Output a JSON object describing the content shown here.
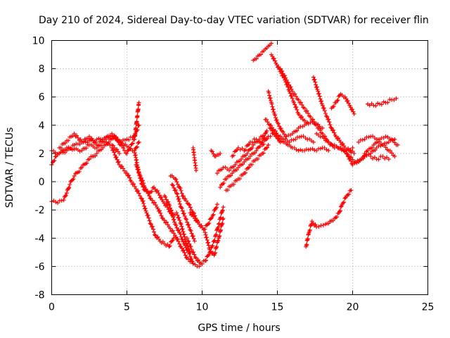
{
  "chart_data": {
    "type": "scatter",
    "title": "Day 210 of 2024, Sidereal Day-to-day VTEC variation (SDTVAR) for receiver flin",
    "xlabel": "GPS time / hours",
    "ylabel": "SDTVAR / TECUs",
    "xlim": [
      0,
      25
    ],
    "ylim": [
      -8,
      10
    ],
    "xticks": [
      "0",
      "5",
      "10",
      "15",
      "20",
      "25"
    ],
    "yticks": [
      "-8",
      "-6",
      "-4",
      "-2",
      "0",
      "2",
      "4",
      "6",
      "8",
      "10"
    ],
    "grid": true,
    "marker": "plus",
    "color": "#ff0000",
    "series": [
      {
        "x": [
          0.0,
          0.5,
          1.0,
          1.5,
          2.0,
          2.5,
          3.0,
          3.5,
          4.0,
          4.5,
          5.0,
          5.5,
          5.8
        ],
        "y": [
          2.2,
          2.0,
          2.2,
          2.6,
          2.8,
          2.9,
          3.0,
          3.1,
          3.2,
          2.9,
          2.5,
          2.2,
          2.8
        ]
      },
      {
        "x": [
          0.0,
          0.3,
          0.6,
          1.0,
          1.5,
          2.0,
          2.5,
          3.0,
          3.5,
          4.0,
          4.5
        ],
        "y": [
          1.2,
          1.8,
          2.1,
          2.4,
          2.3,
          2.2,
          2.6,
          2.4,
          2.8,
          2.6,
          2.0
        ]
      },
      {
        "x": [
          0.0,
          0.4,
          0.8,
          1.0,
          1.2,
          1.5,
          2.0,
          2.5,
          3.0,
          3.4,
          3.8,
          4.2,
          4.6,
          5.0,
          5.5,
          5.8
        ],
        "y": [
          -1.4,
          -1.5,
          -1.3,
          -0.8,
          -0.2,
          0.4,
          1.0,
          1.6,
          2.0,
          2.4,
          2.8,
          3.2,
          2.6,
          2.0,
          3.0,
          5.6
        ]
      },
      {
        "x": [
          0.5,
          1.0,
          1.5,
          2.0,
          2.5,
          3.0,
          3.5,
          4.0,
          4.5,
          5.0,
          5.5,
          5.8
        ],
        "y": [
          2.4,
          2.9,
          3.4,
          2.8,
          3.2,
          2.6,
          3.0,
          3.4,
          2.8,
          3.0,
          3.2,
          4.0
        ]
      },
      {
        "x": [
          4.0,
          4.5,
          5.0,
          5.3,
          5.6,
          6.0,
          6.3,
          6.6,
          6.9,
          7.2,
          7.5,
          7.8,
          8.1
        ],
        "y": [
          2.4,
          1.2,
          0.6,
          0.0,
          -0.5,
          -1.2,
          -2.2,
          -3.0,
          -3.8,
          -4.2,
          -4.4,
          -4.6,
          -4.0
        ]
      },
      {
        "x": [
          5.5,
          5.8,
          6.0,
          6.2,
          6.5,
          6.8,
          7.1,
          7.4,
          7.7,
          8.0,
          8.3,
          8.6,
          8.9,
          9.2
        ],
        "y": [
          2.2,
          0.6,
          -0.2,
          -0.6,
          -0.8,
          -0.4,
          -0.8,
          -1.4,
          -1.8,
          -2.4,
          -2.2,
          -3.0,
          -4.2,
          -5.0
        ]
      },
      {
        "x": [
          5.6,
          5.9,
          6.2,
          6.6,
          7.0,
          7.4,
          7.8,
          8.2,
          8.6,
          9.0,
          9.4,
          9.8
        ],
        "y": [
          1.2,
          0.4,
          -0.4,
          -1.2,
          -1.8,
          -2.6,
          -3.2,
          -3.8,
          -4.6,
          -5.4,
          -5.8,
          -6.0
        ]
      },
      {
        "x": [
          7.5,
          7.8,
          8.0,
          8.2,
          8.5,
          8.8,
          9.1,
          9.4
        ],
        "y": [
          -1.0,
          -1.6,
          -2.2,
          -3.0,
          -3.6,
          -4.4,
          -5.0,
          -5.8
        ]
      },
      {
        "x": [
          8.0,
          8.3,
          8.6,
          8.9,
          9.2,
          9.5
        ],
        "y": [
          -0.2,
          -0.8,
          -1.8,
          -2.6,
          -3.4,
          -4.2
        ]
      },
      {
        "x": [
          7.9,
          8.2,
          8.5,
          8.8,
          9.1,
          9.4,
          9.7
        ],
        "y": [
          0.4,
          0.2,
          -0.4,
          -1.2,
          -1.6,
          -2.2,
          -2.8
        ]
      },
      {
        "x": [
          9.0,
          9.3,
          9.6,
          9.9,
          10.2,
          10.5,
          10.8,
          11.1,
          11.4
        ],
        "y": [
          -4.0,
          -4.8,
          -5.4,
          -5.8,
          -5.6,
          -5.0,
          -4.2,
          -3.0,
          -1.8
        ]
      },
      {
        "x": [
          9.2,
          9.5,
          9.8,
          10.1,
          10.4,
          10.7,
          11.0
        ],
        "y": [
          -2.2,
          -2.6,
          -3.0,
          -3.4,
          -3.0,
          -2.4,
          -1.6
        ]
      },
      {
        "x": [
          10.2,
          10.5,
          10.8,
          11.1,
          11.4
        ],
        "y": [
          -3.6,
          -4.8,
          -5.2,
          -4.0,
          -2.6
        ]
      },
      {
        "x": [
          9.4,
          9.6
        ],
        "y": [
          2.4,
          0.8
        ]
      },
      {
        "x": [
          10.6,
          10.9,
          11.2
        ],
        "y": [
          2.2,
          1.8,
          2.0
        ]
      },
      {
        "x": [
          11.2,
          11.6,
          12.0,
          12.4,
          12.8,
          13.2,
          13.6,
          14.0,
          14.3
        ],
        "y": [
          -0.4,
          0.2,
          0.6,
          1.0,
          1.4,
          1.8,
          2.2,
          2.8,
          3.6
        ]
      },
      {
        "x": [
          11.0,
          11.4,
          11.8,
          12.2,
          12.6,
          13.0,
          13.4,
          13.8,
          14.2
        ],
        "y": [
          0.6,
          1.0,
          0.8,
          1.2,
          1.6,
          2.0,
          2.6,
          3.0,
          3.4
        ]
      },
      {
        "x": [
          11.6,
          12.0,
          12.4,
          12.8,
          13.2,
          13.6,
          14.0,
          14.4
        ],
        "y": [
          -0.6,
          -0.2,
          0.2,
          0.6,
          1.2,
          1.6,
          2.0,
          2.6
        ]
      },
      {
        "x": [
          12.0,
          12.4,
          12.8,
          13.2,
          13.6,
          14.0,
          14.4,
          14.8,
          15.2
        ],
        "y": [
          1.8,
          2.4,
          2.2,
          2.8,
          3.0,
          2.6,
          3.2,
          3.4,
          2.8
        ]
      },
      {
        "x": [
          13.4,
          13.7,
          14.0,
          14.2,
          14.4,
          14.6
        ],
        "y": [
          8.6,
          8.9,
          9.2,
          9.4,
          9.6,
          9.8
        ]
      },
      {
        "x": [
          14.6,
          14.9,
          15.2,
          15.5,
          15.8,
          16.1,
          16.4,
          16.7,
          17.0
        ],
        "y": [
          9.0,
          8.4,
          7.8,
          7.2,
          6.4,
          5.6,
          4.8,
          4.4,
          4.2
        ]
      },
      {
        "x": [
          14.4,
          14.6,
          14.8,
          15.0,
          15.3,
          15.6,
          16.0,
          16.4,
          16.8,
          17.2,
          17.6,
          18.0
        ],
        "y": [
          6.4,
          5.6,
          4.8,
          4.2,
          3.6,
          3.2,
          3.4,
          3.8,
          4.0,
          4.2,
          4.1,
          3.8
        ]
      },
      {
        "x": [
          14.5,
          14.8,
          15.1,
          15.4,
          15.7,
          16.0,
          16.4,
          16.8,
          17.2,
          17.6,
          18.0,
          18.4
        ],
        "y": [
          3.8,
          3.4,
          3.0,
          2.8,
          2.6,
          2.4,
          2.2,
          2.2,
          2.3,
          2.2,
          2.4,
          2.2
        ]
      },
      {
        "x": [
          14.2,
          14.5,
          14.8,
          15.1,
          15.4,
          15.8,
          16.2,
          16.6,
          17.0,
          17.4
        ],
        "y": [
          4.4,
          4.0,
          3.6,
          3.2,
          3.0,
          2.8,
          3.0,
          3.2,
          3.0,
          2.8
        ]
      },
      {
        "x": [
          15.2,
          15.6,
          16.0,
          16.4,
          16.8,
          17.2,
          17.6,
          18.0,
          18.4,
          18.8
        ],
        "y": [
          8.0,
          7.2,
          6.4,
          5.8,
          5.2,
          4.6,
          4.0,
          3.4,
          2.8,
          2.4
        ]
      },
      {
        "x": [
          17.4,
          17.7,
          18.0,
          18.3,
          18.6,
          18.9,
          19.2,
          19.5,
          19.8,
          20.1
        ],
        "y": [
          7.4,
          6.4,
          5.4,
          4.6,
          3.8,
          3.2,
          2.8,
          2.4,
          2.2,
          2.0
        ]
      },
      {
        "x": [
          17.6,
          18.0,
          18.4,
          18.8,
          19.2,
          19.6,
          20.0
        ],
        "y": [
          3.4,
          3.2,
          2.8,
          2.6,
          2.4,
          2.2,
          2.4
        ]
      },
      {
        "x": [
          18.6,
          18.9,
          19.2,
          19.5,
          19.8,
          20.1
        ],
        "y": [
          5.2,
          5.6,
          6.2,
          6.0,
          5.4,
          4.8
        ]
      },
      {
        "x": [
          19.0,
          19.4,
          19.8,
          20.2,
          20.6,
          21.0,
          21.4,
          21.8,
          22.2,
          22.6,
          23.0
        ],
        "y": [
          2.4,
          2.2,
          1.8,
          1.4,
          1.6,
          2.2,
          2.6,
          3.0,
          3.2,
          3.0,
          2.6
        ]
      },
      {
        "x": [
          19.6,
          20.0,
          20.4,
          20.8,
          21.2,
          21.6,
          22.0,
          22.4,
          22.8
        ],
        "y": [
          2.0,
          1.2,
          1.4,
          1.8,
          2.0,
          2.4,
          2.6,
          2.8,
          3.0
        ]
      },
      {
        "x": [
          20.4,
          20.8,
          21.2,
          21.6,
          22.0,
          22.4,
          22.8
        ],
        "y": [
          2.8,
          3.0,
          3.2,
          3.0,
          2.6,
          2.2,
          1.8
        ]
      },
      {
        "x": [
          20.8,
          21.2,
          21.6,
          22.0,
          22.4
        ],
        "y": [
          2.0,
          1.8,
          1.6,
          1.8,
          1.6
        ]
      },
      {
        "x": [
          21.0,
          21.4,
          21.8,
          22.2,
          22.6,
          22.9
        ],
        "y": [
          5.5,
          5.4,
          5.5,
          5.6,
          5.8,
          5.9
        ]
      },
      {
        "x": [
          16.9,
          17.1,
          17.3,
          17.6,
          17.9,
          18.2,
          18.5,
          18.8,
          19.1,
          19.3,
          19.6,
          19.9
        ],
        "y": [
          -4.6,
          -3.6,
          -2.8,
          -3.2,
          -3.1,
          -3.0,
          -2.8,
          -2.6,
          -2.2,
          -1.6,
          -1.0,
          -0.6
        ]
      }
    ]
  }
}
